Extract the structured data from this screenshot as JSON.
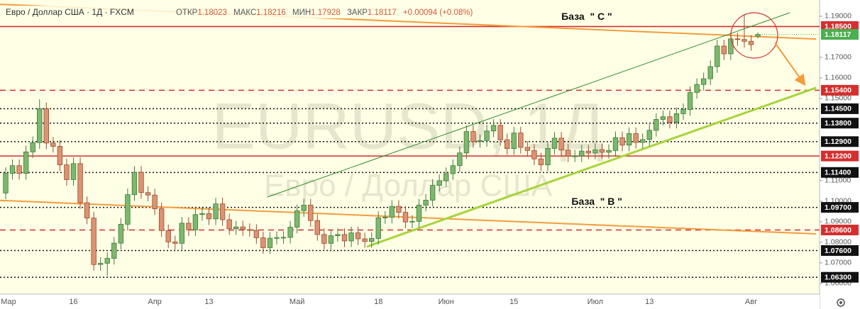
{
  "header": {
    "symbol": "Евро / Доллар США · 1Д · FXCM",
    "open_label": "ОТКР",
    "high_label": "МАКС",
    "low_label": "МИН",
    "close_label": "ЗАКР",
    "change": "+0.00094 (+0.08%)"
  },
  "chart_data": {
    "type": "candlestick",
    "watermark": "EURUSD, 1Д",
    "watermark_subtitle": "Евро / Доллар США",
    "annotations": [
      {
        "text": "База  \" С \"",
        "x": 82,
        "y": 1.1895
      },
      {
        "text": "База  \" В \"",
        "x": 83.5,
        "y": 1.0995
      }
    ],
    "categories": [
      "Мар",
      null,
      null,
      null,
      null,
      null,
      null,
      null,
      null,
      null,
      "16",
      null,
      null,
      null,
      null,
      null,
      null,
      null,
      null,
      null,
      null,
      null,
      "Апр",
      null,
      null,
      null,
      null,
      null,
      null,
      null,
      "13",
      null,
      null,
      null,
      null,
      null,
      null,
      null,
      null,
      null,
      null,
      null,
      null,
      "Май",
      null,
      null,
      null,
      null,
      null,
      null,
      null,
      null,
      null,
      null,
      null,
      "18",
      null,
      null,
      null,
      null,
      null,
      null,
      null,
      null,
      null,
      "Июн",
      null,
      null,
      null,
      null,
      null,
      null,
      null,
      null,
      null,
      "15",
      null,
      null,
      null,
      null,
      null,
      null,
      null,
      null,
      null,
      null,
      null,
      "Июл",
      null,
      null,
      null,
      null,
      null,
      null,
      null,
      "13",
      null,
      null,
      null,
      null,
      null,
      null,
      null,
      null,
      null,
      null,
      null,
      null,
      null,
      null,
      "Авг",
      null
    ],
    "open": [
      1.104,
      1.1135,
      1.1173,
      1.1135,
      1.124,
      1.1285,
      1.145,
      1.1283,
      1.1267,
      1.1177,
      1.1105,
      1.1183,
      1.0993,
      1.0918,
      1.0692,
      1.0698,
      1.0722,
      1.0796,
      1.0888,
      1.1032,
      1.1141,
      1.1042,
      1.103,
      1.0963,
      1.0857,
      1.0802,
      1.0795,
      1.0893,
      1.0861,
      1.0935,
      1.094,
      1.0914,
      1.0987,
      1.091,
      1.0866,
      1.0875,
      1.0862,
      1.0858,
      1.0822,
      1.0774,
      1.082,
      1.0823,
      1.0824,
      1.0874,
      1.0954,
      1.0981,
      1.0906,
      1.0838,
      1.0795,
      1.0832,
      1.0838,
      1.0807,
      1.0846,
      1.0817,
      1.0804,
      1.0819,
      1.092,
      1.0922,
      1.0975,
      1.0946,
      1.0899,
      1.0902,
      1.0981,
      1.1005,
      1.1077,
      1.11,
      1.1134,
      1.1173,
      1.1235,
      1.1339,
      1.129,
      1.1295,
      1.1342,
      1.1369,
      1.1299,
      1.1256,
      1.1332,
      1.1262,
      1.1247,
      1.1206,
      1.1177,
      1.1257,
      1.1307,
      1.1249,
      1.122,
      1.122,
      1.1244,
      1.1234,
      1.1251,
      1.1238,
      1.1247,
      1.1309,
      1.1273,
      1.1329,
      1.1286,
      1.13,
      1.1345,
      1.1398,
      1.1411,
      1.1384,
      1.1426,
      1.1446,
      1.1529,
      1.1568,
      1.1596,
      1.1655,
      1.1755,
      1.1717,
      1.179,
      1.1787,
      1.1778,
      1.18023
    ],
    "high": [
      1.1165,
      1.1203,
      1.1203,
      1.127,
      1.1315,
      1.1496,
      1.148,
      1.1313,
      1.1297,
      1.1207,
      1.1213,
      1.1213,
      1.1023,
      1.0948,
      1.0728,
      1.0752,
      1.0826,
      1.0918,
      1.1062,
      1.1171,
      1.1171,
      1.1072,
      1.106,
      1.0993,
      1.0887,
      1.0832,
      1.0923,
      1.0923,
      1.0965,
      1.097,
      1.097,
      1.1017,
      1.1017,
      1.094,
      1.0905,
      1.0905,
      1.0892,
      1.0888,
      1.0852,
      1.085,
      1.0853,
      1.0854,
      1.0904,
      1.0984,
      1.1011,
      1.1011,
      1.0936,
      1.0868,
      1.0862,
      1.0868,
      1.0868,
      1.0876,
      1.0876,
      1.0847,
      1.0849,
      1.095,
      1.0952,
      1.1005,
      1.1005,
      1.0976,
      1.0932,
      1.1011,
      1.1035,
      1.1107,
      1.113,
      1.1164,
      1.1203,
      1.1265,
      1.1369,
      1.1369,
      1.1325,
      1.1372,
      1.1399,
      1.1399,
      1.1329,
      1.1362,
      1.1362,
      1.1292,
      1.1277,
      1.1236,
      1.1287,
      1.1337,
      1.1337,
      1.1279,
      1.125,
      1.1274,
      1.1274,
      1.1281,
      1.1281,
      1.1277,
      1.1339,
      1.1339,
      1.1359,
      1.1359,
      1.133,
      1.1375,
      1.1428,
      1.1441,
      1.1441,
      1.1456,
      1.1476,
      1.1559,
      1.1598,
      1.1626,
      1.1685,
      1.1785,
      1.1785,
      1.182,
      1.182,
      1.1908,
      1.1808,
      1.18216
    ],
    "low": [
      1.101,
      1.1105,
      1.1105,
      1.1105,
      1.121,
      1.1255,
      1.1253,
      1.1237,
      1.1147,
      1.1075,
      1.1075,
      1.0963,
      1.0888,
      1.0662,
      1.0662,
      1.0636,
      1.0692,
      1.0766,
      1.0858,
      1.1002,
      1.1012,
      1.1,
      1.0933,
      1.0827,
      1.0772,
      1.0765,
      1.0765,
      1.0831,
      1.0831,
      1.0905,
      1.0884,
      1.0884,
      1.088,
      1.0836,
      1.0836,
      1.0832,
      1.0828,
      1.0792,
      1.0744,
      1.0744,
      1.079,
      1.0793,
      1.0794,
      1.0844,
      1.0924,
      1.0876,
      1.0808,
      1.0765,
      1.0765,
      1.0802,
      1.0777,
      1.0777,
      1.0787,
      1.0774,
      1.0774,
      1.0789,
      1.089,
      1.0892,
      1.0916,
      1.0869,
      1.0869,
      1.0872,
      1.0951,
      1.0975,
      1.1047,
      1.107,
      1.1104,
      1.1143,
      1.1205,
      1.126,
      1.126,
      1.1265,
      1.1312,
      1.1269,
      1.1226,
      1.1226,
      1.1232,
      1.1217,
      1.1176,
      1.1147,
      1.1147,
      1.1227,
      1.1219,
      1.119,
      1.119,
      1.119,
      1.1204,
      1.1204,
      1.1208,
      1.1208,
      1.1217,
      1.1243,
      1.1243,
      1.1256,
      1.1256,
      1.127,
      1.1315,
      1.1368,
      1.1354,
      1.1354,
      1.1396,
      1.1416,
      1.1499,
      1.1538,
      1.1566,
      1.1625,
      1.1687,
      1.1687,
      1.1757,
      1.1748,
      1.1732,
      1.17928
    ],
    "close": [
      1.1135,
      1.1173,
      1.1135,
      1.124,
      1.1285,
      1.145,
      1.1283,
      1.1267,
      1.1177,
      1.1105,
      1.1183,
      1.0993,
      1.0918,
      1.0692,
      1.0698,
      1.0722,
      1.0796,
      1.0888,
      1.1032,
      1.1141,
      1.1042,
      1.103,
      1.0963,
      1.0857,
      1.0802,
      1.0795,
      1.0893,
      1.0861,
      1.0935,
      1.094,
      1.0914,
      1.0987,
      1.091,
      1.0866,
      1.0875,
      1.0862,
      1.0858,
      1.0822,
      1.0774,
      1.082,
      1.0823,
      1.0824,
      1.0874,
      1.0954,
      1.0981,
      1.0906,
      1.0838,
      1.0795,
      1.0832,
      1.0838,
      1.0807,
      1.0846,
      1.0817,
      1.0804,
      1.0819,
      1.092,
      1.0922,
      1.0975,
      1.0946,
      1.0899,
      1.0902,
      1.0981,
      1.1005,
      1.1077,
      1.11,
      1.1134,
      1.1173,
      1.1235,
      1.1339,
      1.129,
      1.1295,
      1.1342,
      1.1369,
      1.1299,
      1.1256,
      1.1332,
      1.1262,
      1.1247,
      1.1206,
      1.1177,
      1.1257,
      1.1307,
      1.1249,
      1.122,
      1.122,
      1.1244,
      1.1234,
      1.1251,
      1.1238,
      1.1247,
      1.1309,
      1.1273,
      1.1329,
      1.1286,
      1.13,
      1.1345,
      1.1398,
      1.1411,
      1.1384,
      1.1426,
      1.1446,
      1.1529,
      1.1568,
      1.1596,
      1.1655,
      1.1755,
      1.1717,
      1.179,
      1.1787,
      1.1778,
      1.1762,
      1.18117
    ],
    "up_color": "#7cb86e",
    "down_color": "#dc9373",
    "current_price_color": "#4caf50",
    "ylim": [
      1.0548,
      1.1979
    ],
    "yticks": [
      {
        "value": 1.06,
        "label": "1.06000"
      },
      {
        "value": 1.07,
        "label": "1.07000"
      },
      {
        "value": 1.08,
        "label": "1.08000"
      },
      {
        "value": 1.09,
        "label": "1.09000"
      },
      {
        "value": 1.1,
        "label": "1.10000"
      },
      {
        "value": 1.11,
        "label": "1.11000"
      },
      {
        "value": 1.15,
        "label": "1.15000"
      },
      {
        "value": 1.16,
        "label": "1.16000"
      },
      {
        "value": 1.17,
        "label": "1.17000"
      },
      {
        "value": 1.19,
        "label": "1.19000"
      }
    ],
    "levels": [
      {
        "value": 1.185,
        "label": "1.18500",
        "style": "solid",
        "color": "#d32f2f"
      },
      {
        "value": 1.154,
        "label": "1.15400",
        "style": "dashed",
        "color": "#d32f2f"
      },
      {
        "value": 1.145,
        "label": "1.14500",
        "style": "dotted",
        "color": "#111111"
      },
      {
        "value": 1.138,
        "label": "1.13800",
        "style": "dotted",
        "color": "#111111"
      },
      {
        "value": 1.129,
        "label": "1.12900",
        "style": "dotted",
        "color": "#111111"
      },
      {
        "value": 1.122,
        "label": "1.12200",
        "style": "solid",
        "color": "#d32f2f"
      },
      {
        "value": 1.114,
        "label": "1.11400",
        "style": "dotted",
        "color": "#111111"
      },
      {
        "value": 1.097,
        "label": "1.09700",
        "style": "dotted",
        "color": "#111111"
      },
      {
        "value": 1.086,
        "label": "1.08600",
        "style": "dashed",
        "color": "#d32f2f"
      },
      {
        "value": 1.076,
        "label": "1.07600",
        "style": "dotted",
        "color": "#111111"
      },
      {
        "value": 1.063,
        "label": "1.06300",
        "style": "dotted",
        "color": "#111111"
      }
    ],
    "trend_lines": [
      {
        "x": [
          -0.84,
          119.6
        ],
        "y": [
          1.1958,
          1.1789
        ],
        "color": "#f39c3c",
        "width": 2
      },
      {
        "x": [
          -0.84,
          119.6
        ],
        "y": [
          1.1004,
          1.0841
        ],
        "color": "#f39c3c",
        "width": 2
      },
      {
        "x": [
          38.6,
          115.7
        ],
        "y": [
          1.102,
          1.1917
        ],
        "color": "#2e8b2e",
        "width": 1
      },
      {
        "x": [
          53.3,
          119.6
        ],
        "y": [
          1.0779,
          1.1552
        ],
        "color": "#a6d43a",
        "width": 3
      }
    ]
  }
}
